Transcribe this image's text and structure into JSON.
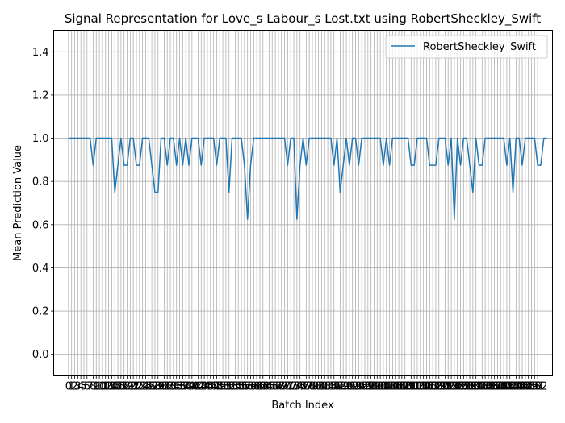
{
  "chart_data": {
    "type": "line",
    "title": "Signal Representation for Love_s Labour_s Lost.txt using RobertSheckley_Swift",
    "xlabel": "Batch Index",
    "ylabel": "Mean Prediction Value",
    "xlim": [
      -4.8,
      156.8
    ],
    "ylim": [
      -0.1,
      1.5
    ],
    "yticks": [
      0.0,
      0.2,
      0.4,
      0.6,
      0.8,
      1.0,
      1.2,
      1.4
    ],
    "ytick_labels": [
      "0.0",
      "0.2",
      "0.4",
      "0.6",
      "0.8",
      "1.0",
      "1.2",
      "1.4"
    ],
    "xticks_count": 153,
    "grid": true,
    "legend_position": "upper right",
    "series": [
      {
        "name": "RobertSheckley_Swift",
        "color": "#1f77b4",
        "values": [
          1,
          1,
          1,
          1,
          1,
          1,
          1,
          1,
          0.875,
          1,
          1,
          1,
          1,
          1,
          1,
          0.75,
          0.875,
          1,
          0.875,
          0.875,
          1,
          1,
          0.875,
          0.875,
          1,
          1,
          1,
          0.875,
          0.75,
          0.75,
          1,
          1,
          0.875,
          1,
          1,
          0.875,
          1,
          0.875,
          1,
          0.875,
          1,
          1,
          1,
          0.875,
          1,
          1,
          1,
          1,
          0.875,
          1,
          1,
          1,
          0.75,
          1,
          1,
          1,
          1,
          0.875,
          0.625,
          0.875,
          1,
          1,
          1,
          1,
          1,
          1,
          1,
          1,
          1,
          1,
          1,
          0.875,
          1,
          1,
          0.625,
          0.875,
          1,
          0.875,
          1,
          1,
          1,
          1,
          1,
          1,
          1,
          1,
          0.875,
          1,
          0.75,
          0.875,
          1,
          0.875,
          1,
          1,
          0.875,
          1,
          1,
          1,
          1,
          1,
          1,
          1,
          0.875,
          1,
          0.875,
          1,
          1,
          1,
          1,
          1,
          1,
          0.875,
          0.875,
          1,
          1,
          1,
          1,
          0.875,
          0.875,
          0.875,
          1,
          1,
          1,
          0.875,
          1,
          0.625,
          1,
          0.875,
          1,
          1,
          0.875,
          0.75,
          1,
          0.875,
          0.875,
          1,
          1,
          1,
          1,
          1,
          1,
          1,
          0.875,
          1,
          0.75,
          1,
          1,
          0.875,
          1,
          1,
          1,
          1,
          0.875,
          0.875,
          1,
          1
        ]
      }
    ]
  }
}
